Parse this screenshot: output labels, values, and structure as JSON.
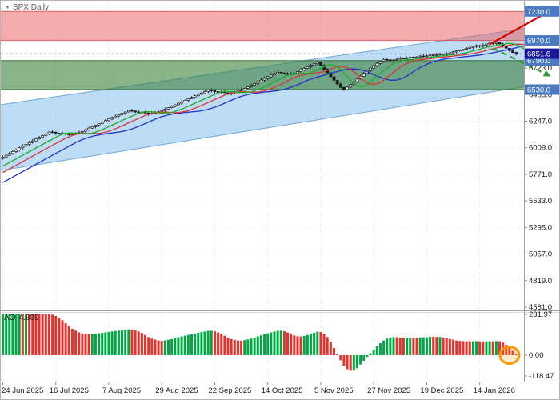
{
  "header": {
    "symbol_label": "SPX,Daily",
    "dropdown_icon": "▼"
  },
  "indicator_panel": {
    "name": "AO",
    "value": "4.809"
  },
  "chart_data": {
    "type": "candlestick",
    "symbol": "SPX",
    "timeframe": "Daily",
    "title": "SPX,Daily",
    "x_axis": {
      "labels": [
        {
          "label": "24 Jun 2025",
          "day": 0
        },
        {
          "label": "16 Jul 2025",
          "day": 16
        },
        {
          "label": "7 Aug 2025",
          "day": 32
        },
        {
          "label": "29 Aug 2025",
          "day": 48
        },
        {
          "label": "22 Sep 2025",
          "day": 64
        },
        {
          "label": "14 Oct 2025",
          "day": 80
        },
        {
          "label": "5 Nov 2025",
          "day": 96
        },
        {
          "label": "27 Nov 2025",
          "day": 112
        },
        {
          "label": "19 Dec 2025",
          "day": 128
        },
        {
          "label": "14 Jan 2026",
          "day": 144
        }
      ]
    },
    "y_axis": {
      "ticks": [
        {
          "value": 6723.0,
          "label": "6723.0"
        },
        {
          "value": 6485.0,
          "label": "6485.0"
        },
        {
          "value": 6247.0,
          "label": "6247.0"
        },
        {
          "value": 6009.0,
          "label": "6009.0"
        },
        {
          "value": 5771.0,
          "label": "5771.0"
        },
        {
          "value": 5533.0,
          "label": "5533.0"
        },
        {
          "value": 5295.0,
          "label": "5295.0"
        },
        {
          "value": 5057.0,
          "label": "5057.0"
        },
        {
          "value": 4819.0,
          "label": "4819.0"
        },
        {
          "value": 4581.0,
          "label": "4581.0"
        }
      ]
    },
    "levels": [
      {
        "label": "7230.0",
        "price": 7230.0,
        "badge_color": "#4a7ac2"
      },
      {
        "label": "6970.0",
        "price": 6970.0,
        "badge_color": "#4a7ac2"
      },
      {
        "label": "6790.0",
        "price": 6790.0,
        "badge_color": "#4a7ac2"
      },
      {
        "label": "6530.0",
        "price": 6530.0,
        "badge_color": "#4a7ac2"
      }
    ],
    "current_price": {
      "value": 6851.6,
      "label": "6851.6",
      "badge_color": "#17179a",
      "line_color": "#8a8acc"
    },
    "zones": [
      {
        "name": "resistance-zone",
        "from": 6970.0,
        "to": 7230.0,
        "color": "rgba(236,95,95,0.52)",
        "edge": "rgba(205,80,80,0.85)"
      },
      {
        "name": "support-zone",
        "from": 6530.0,
        "to": 6790.0,
        "color": "rgba(52,125,52,0.58)",
        "edge": "rgba(45,105,45,0.9)"
      }
    ],
    "channel": {
      "name": "trend-channel",
      "color": "rgba(108,178,233,0.45)",
      "edge": "rgba(90,155,210,0.85)",
      "upper": {
        "start": 6395,
        "end": 7075
      },
      "lower": {
        "start": 5805,
        "end": 6555
      }
    },
    "candles": {
      "count": 156,
      "closes": [
        5925,
        5942,
        5958,
        5975,
        5990,
        6008,
        6022,
        6040,
        6055,
        6070,
        6088,
        6102,
        6118,
        6133,
        6150,
        6148,
        6140,
        6132,
        6138,
        6130,
        6125,
        6132,
        6140,
        6148,
        6155,
        6170,
        6185,
        6198,
        6212,
        6225,
        6240,
        6252,
        6266,
        6280,
        6292,
        6305,
        6318,
        6330,
        6342,
        6338,
        6330,
        6322,
        6328,
        6320,
        6312,
        6318,
        6325,
        6332,
        6340,
        6355,
        6368,
        6380,
        6394,
        6408,
        6420,
        6434,
        6448,
        6460,
        6474,
        6488,
        6500,
        6512,
        6525,
        6520,
        6512,
        6505,
        6510,
        6502,
        6495,
        6502,
        6510,
        6518,
        6525,
        6540,
        6555,
        6570,
        6585,
        6600,
        6615,
        6630,
        6645,
        6660,
        6672,
        6685,
        6680,
        6672,
        6665,
        6670,
        6678,
        6692,
        6706,
        6720,
        6734,
        6748,
        6762,
        6775,
        6745,
        6712,
        6680,
        6645,
        6612,
        6580,
        6550,
        6530,
        6552,
        6575,
        6600,
        6625,
        6650,
        6675,
        6700,
        6722,
        6745,
        6765,
        6785,
        6800,
        6795,
        6788,
        6795,
        6802,
        6810,
        6804,
        6812,
        6820,
        6815,
        6822,
        6830,
        6825,
        6832,
        6840,
        6835,
        6842,
        6850,
        6845,
        6852,
        6860,
        6868,
        6876,
        6884,
        6892,
        6900,
        6908,
        6916,
        6924,
        6918,
        6928,
        6938,
        6948,
        6942,
        6952,
        6940,
        6922,
        6900,
        6880,
        6862,
        6851.6
      ]
    },
    "moving_averages": [
      {
        "name": "jaw",
        "period": 13,
        "shift": 8,
        "color": "#2233cc"
      },
      {
        "name": "teeth",
        "period": 8,
        "shift": 5,
        "color": "#dd3333"
      },
      {
        "name": "lips",
        "period": 5,
        "shift": 3,
        "color": "#22aa22"
      }
    ],
    "oscillator": {
      "name": "AO",
      "current_value": "4.809",
      "fast_period": 5,
      "slow_period": 34,
      "up_color": "#00a843",
      "down_color": "#e8312a",
      "scale_ticks": [
        {
          "value": 231.97,
          "label": "231.97"
        },
        {
          "value": 0,
          "label": "0.00"
        },
        {
          "value": -118.47,
          "label": "-118.47"
        }
      ]
    },
    "arrows": [
      {
        "name": "bullish-projection-arrow",
        "color": "#d40000",
        "style": "solid",
        "from": {
          "day": 147,
          "price": 6935
        },
        "to": {
          "day": 165.5,
          "price": 7240
        }
      },
      {
        "name": "bearish-projection-arrow",
        "color": "#2f9e2f",
        "style": "dashed",
        "from": {
          "day": 148,
          "price": 6900
        },
        "to": {
          "day": 165.5,
          "price": 6648
        }
      }
    ],
    "highlight": {
      "shape": "ellipse",
      "color": "#ff9500",
      "day": 153
    }
  }
}
